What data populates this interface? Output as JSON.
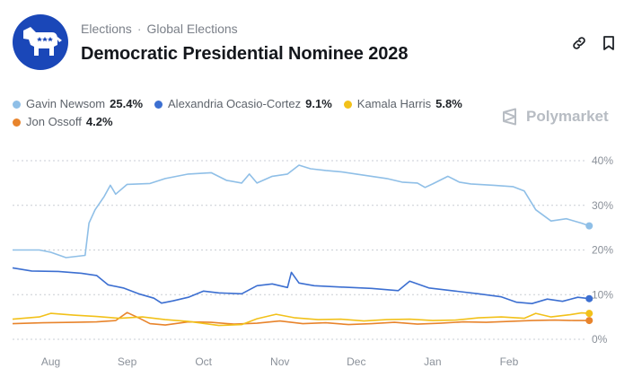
{
  "header": {
    "breadcrumb": [
      "Elections",
      "Global Elections"
    ],
    "breadcrumb_separator": "·",
    "title": "Democratic Presidential Nominee 2028",
    "logo_icon": "democratic-donkey-icon",
    "actions": [
      {
        "icon": "link-icon"
      },
      {
        "icon": "bookmark-icon"
      }
    ]
  },
  "watermark": {
    "label": "Polymarket",
    "icon": "polymarket-logo-icon"
  },
  "legend": [
    {
      "name": "Gavin Newsom",
      "value": "25.4%",
      "color": "#8fbfe7"
    },
    {
      "name": "Alexandria Ocasio-Cortez",
      "value": "9.1%",
      "color": "#3c6fd1"
    },
    {
      "name": "Kamala Harris",
      "value": "5.8%",
      "color": "#f2c11a"
    },
    {
      "name": "Jon Ossoff",
      "value": "4.2%",
      "color": "#e8842c"
    }
  ],
  "chart_data": {
    "type": "line",
    "x_tick_labels": [
      "Aug",
      "Sep",
      "Oct",
      "Nov",
      "Dec",
      "Jan",
      "Feb"
    ],
    "y_tick_labels": [
      "40%",
      "30%",
      "20%",
      "10%",
      "0%"
    ],
    "ylim": [
      0,
      40
    ],
    "grid": true,
    "x_domain": [
      0,
      7.5
    ],
    "series": [
      {
        "name": "Gavin Newsom",
        "color": "#8fbfe7",
        "points": [
          [
            0.0,
            20
          ],
          [
            0.35,
            20
          ],
          [
            0.5,
            19.5
          ],
          [
            0.7,
            18.3
          ],
          [
            0.95,
            18.8
          ],
          [
            1.0,
            26
          ],
          [
            1.08,
            29
          ],
          [
            1.2,
            32
          ],
          [
            1.28,
            34.5
          ],
          [
            1.35,
            32.5
          ],
          [
            1.5,
            34.7
          ],
          [
            1.8,
            34.9
          ],
          [
            2.0,
            36
          ],
          [
            2.3,
            37
          ],
          [
            2.6,
            37.3
          ],
          [
            2.8,
            35.6
          ],
          [
            3.0,
            35
          ],
          [
            3.1,
            37
          ],
          [
            3.2,
            35
          ],
          [
            3.4,
            36.5
          ],
          [
            3.6,
            37
          ],
          [
            3.75,
            39
          ],
          [
            3.9,
            38.2
          ],
          [
            4.1,
            37.8
          ],
          [
            4.3,
            37.5
          ],
          [
            4.5,
            37
          ],
          [
            4.7,
            36.5
          ],
          [
            4.9,
            36
          ],
          [
            5.1,
            35.2
          ],
          [
            5.3,
            35
          ],
          [
            5.4,
            34
          ],
          [
            5.5,
            34.8
          ],
          [
            5.7,
            36.5
          ],
          [
            5.85,
            35.2
          ],
          [
            6.0,
            34.8
          ],
          [
            6.3,
            34.5
          ],
          [
            6.55,
            34.2
          ],
          [
            6.7,
            33.2
          ],
          [
            6.85,
            29
          ],
          [
            7.05,
            26.5
          ],
          [
            7.25,
            27
          ],
          [
            7.45,
            26
          ],
          [
            7.55,
            25.4
          ]
        ]
      },
      {
        "name": "Alexandria Ocasio-Cortez",
        "color": "#3c6fd1",
        "points": [
          [
            0.0,
            16
          ],
          [
            0.25,
            15.3
          ],
          [
            0.6,
            15.2
          ],
          [
            0.9,
            14.8
          ],
          [
            1.1,
            14.3
          ],
          [
            1.25,
            12.2
          ],
          [
            1.45,
            11.5
          ],
          [
            1.65,
            10.2
          ],
          [
            1.85,
            9.2
          ],
          [
            1.95,
            8.1
          ],
          [
            2.1,
            8.6
          ],
          [
            2.3,
            9.4
          ],
          [
            2.5,
            10.8
          ],
          [
            2.7,
            10.4
          ],
          [
            3.0,
            10.2
          ],
          [
            3.2,
            12
          ],
          [
            3.4,
            12.4
          ],
          [
            3.6,
            11.6
          ],
          [
            3.65,
            15
          ],
          [
            3.75,
            12.6
          ],
          [
            3.95,
            12
          ],
          [
            4.3,
            11.7
          ],
          [
            4.7,
            11.4
          ],
          [
            5.05,
            10.9
          ],
          [
            5.2,
            13
          ],
          [
            5.45,
            11.5
          ],
          [
            5.8,
            10.8
          ],
          [
            6.1,
            10.2
          ],
          [
            6.4,
            9.5
          ],
          [
            6.6,
            8.3
          ],
          [
            6.8,
            8
          ],
          [
            7.0,
            9
          ],
          [
            7.2,
            8.5
          ],
          [
            7.4,
            9.4
          ],
          [
            7.55,
            9.1
          ]
        ]
      },
      {
        "name": "Kamala Harris",
        "color": "#f2c11a",
        "points": [
          [
            0.0,
            4.5
          ],
          [
            0.35,
            5
          ],
          [
            0.5,
            5.8
          ],
          [
            0.8,
            5.4
          ],
          [
            1.1,
            5.1
          ],
          [
            1.4,
            4.7
          ],
          [
            1.7,
            5
          ],
          [
            2.0,
            4.4
          ],
          [
            2.3,
            4
          ],
          [
            2.7,
            3.1
          ],
          [
            3.0,
            3.3
          ],
          [
            3.2,
            4.6
          ],
          [
            3.45,
            5.6
          ],
          [
            3.7,
            4.8
          ],
          [
            4.0,
            4.4
          ],
          [
            4.3,
            4.5
          ],
          [
            4.6,
            4.1
          ],
          [
            4.9,
            4.4
          ],
          [
            5.2,
            4.5
          ],
          [
            5.5,
            4.2
          ],
          [
            5.8,
            4.3
          ],
          [
            6.1,
            4.8
          ],
          [
            6.4,
            5
          ],
          [
            6.7,
            4.7
          ],
          [
            6.85,
            5.8
          ],
          [
            7.05,
            5
          ],
          [
            7.3,
            5.5
          ],
          [
            7.45,
            5.9
          ],
          [
            7.55,
            5.8
          ]
        ]
      },
      {
        "name": "Jon Ossoff",
        "color": "#e8842c",
        "points": [
          [
            0.0,
            3.5
          ],
          [
            0.4,
            3.7
          ],
          [
            0.8,
            3.8
          ],
          [
            1.1,
            3.9
          ],
          [
            1.35,
            4.2
          ],
          [
            1.5,
            6
          ],
          [
            1.65,
            4.8
          ],
          [
            1.8,
            3.5
          ],
          [
            2.0,
            3.2
          ],
          [
            2.3,
            3.9
          ],
          [
            2.6,
            3.8
          ],
          [
            2.9,
            3.4
          ],
          [
            3.2,
            3.6
          ],
          [
            3.5,
            4.1
          ],
          [
            3.8,
            3.5
          ],
          [
            4.1,
            3.7
          ],
          [
            4.4,
            3.3
          ],
          [
            4.7,
            3.5
          ],
          [
            5.0,
            3.8
          ],
          [
            5.3,
            3.4
          ],
          [
            5.6,
            3.6
          ],
          [
            5.9,
            3.9
          ],
          [
            6.2,
            3.8
          ],
          [
            6.5,
            4
          ],
          [
            6.8,
            4.2
          ],
          [
            7.1,
            4.3
          ],
          [
            7.35,
            4.2
          ],
          [
            7.55,
            4.2
          ]
        ]
      }
    ]
  }
}
